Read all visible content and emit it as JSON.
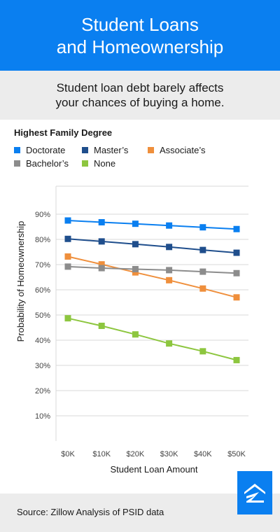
{
  "header": {
    "title_line1": "Student Loans",
    "title_line2": "and Homeownership"
  },
  "subheader": {
    "line1": "Student loan debt barely affects",
    "line2": "your chances of buying a home."
  },
  "footer": {
    "source": "Source: Zillow Analysis of PSID data"
  },
  "logo_icon": "zillow-logo-icon",
  "chart_data": {
    "type": "line",
    "legend_title": "Highest Family Degree",
    "xlabel": "Student Loan Amount",
    "ylabel": "Probability of Homeownership",
    "categories": [
      "$0K",
      "$10K",
      "$20K",
      "$30K",
      "$40K",
      "$50K"
    ],
    "ylim": [
      0,
      100
    ],
    "yticks": [
      10,
      20,
      30,
      40,
      50,
      60,
      70,
      80,
      90
    ],
    "ytick_labels": [
      "10%",
      "20%",
      "30%",
      "40%",
      "50%",
      "60%",
      "70%",
      "80%",
      "90%"
    ],
    "grid": "horizontal",
    "series": [
      {
        "name": "Doctorate",
        "color": "#0a7ff0",
        "values": [
          87.5,
          86.8,
          86.2,
          85.5,
          84.8,
          84.1
        ]
      },
      {
        "name": "Master’s",
        "color": "#1f4e8c",
        "values": [
          80.2,
          79.2,
          78.1,
          77.0,
          75.8,
          74.7
        ]
      },
      {
        "name": "Associate’s",
        "color": "#ef8f3c",
        "values": [
          73.2,
          70.1,
          66.9,
          63.8,
          60.5,
          57.0
        ]
      },
      {
        "name": "Bachelor’s",
        "color": "#8c8c8c",
        "values": [
          69.2,
          68.6,
          68.2,
          67.8,
          67.2,
          66.6
        ]
      },
      {
        "name": "None",
        "color": "#8dc63f",
        "values": [
          48.7,
          45.7,
          42.3,
          38.7,
          35.6,
          32.1
        ]
      }
    ]
  }
}
